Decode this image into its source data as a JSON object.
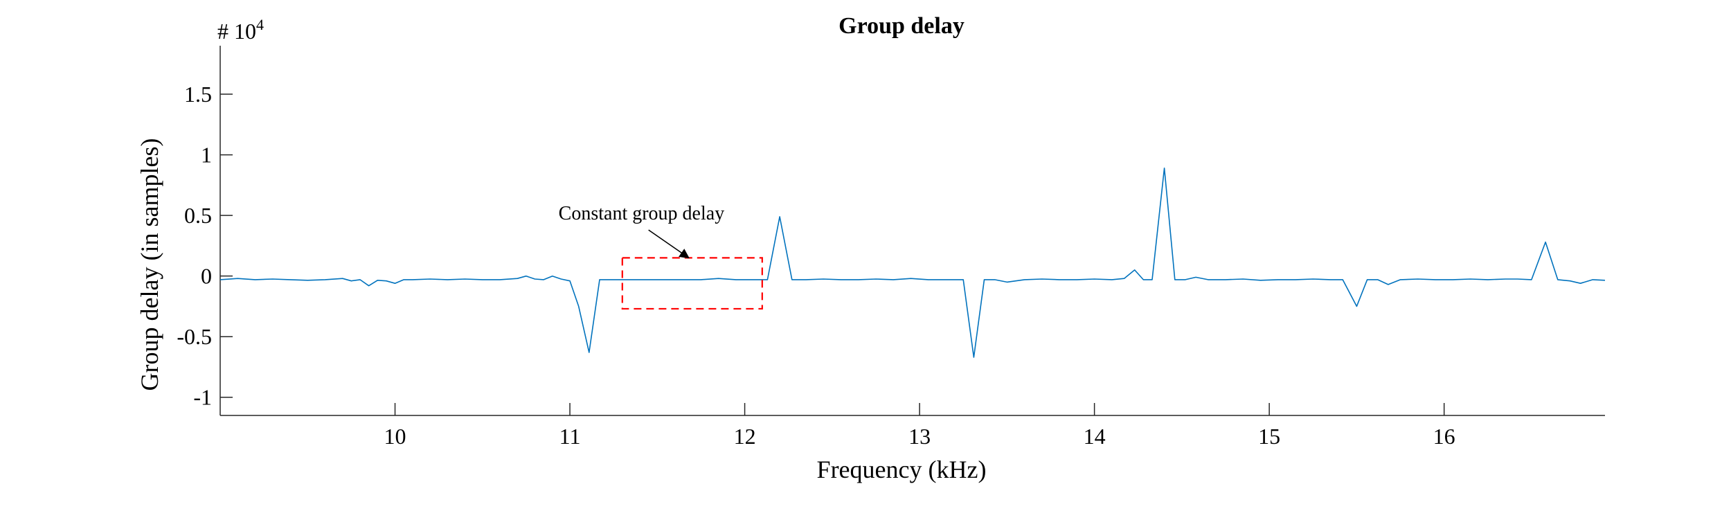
{
  "chart_data": {
    "type": "line",
    "title": "Group delay",
    "xlabel": "Frequency (kHz)",
    "ylabel": "Group delay (in samples)",
    "y_exponent_base": "# 10",
    "y_exponent_power": "4",
    "xlim": [
      9.0,
      16.92
    ],
    "ylim": [
      -1.15,
      1.9
    ],
    "x_ticks": [
      10,
      11,
      12,
      13,
      14,
      15,
      16
    ],
    "x_tick_labels": [
      "10",
      "11",
      "12",
      "13",
      "14",
      "15",
      "16"
    ],
    "y_ticks": [
      -1,
      -0.5,
      0,
      0.5,
      1,
      1.5
    ],
    "y_tick_labels": [
      "-1",
      "-0.5",
      "0",
      "0.5",
      "1",
      "1.5"
    ],
    "grid": false,
    "series": [
      {
        "color": "#0072BD",
        "x": [
          9.0,
          9.1,
          9.2,
          9.3,
          9.4,
          9.5,
          9.6,
          9.7,
          9.75,
          9.8,
          9.85,
          9.9,
          9.95,
          10.0,
          10.05,
          10.1,
          10.2,
          10.3,
          10.4,
          10.5,
          10.6,
          10.7,
          10.75,
          10.8,
          10.85,
          10.9,
          10.95,
          11.0,
          11.05,
          11.11,
          11.17,
          11.25,
          11.35,
          11.45,
          11.55,
          11.65,
          11.75,
          11.85,
          11.95,
          12.05,
          12.13,
          12.2,
          12.27,
          12.35,
          12.45,
          12.55,
          12.65,
          12.75,
          12.85,
          12.95,
          13.05,
          13.15,
          13.25,
          13.31,
          13.37,
          13.43,
          13.5,
          13.6,
          13.7,
          13.8,
          13.9,
          14.0,
          14.1,
          14.17,
          14.23,
          14.28,
          14.33,
          14.4,
          14.46,
          14.52,
          14.58,
          14.65,
          14.75,
          14.85,
          14.95,
          15.05,
          15.15,
          15.25,
          15.35,
          15.42,
          15.5,
          15.56,
          15.62,
          15.68,
          15.75,
          15.85,
          15.95,
          16.05,
          16.15,
          16.25,
          16.35,
          16.42,
          16.5,
          16.58,
          16.65,
          16.72,
          16.78,
          16.85,
          16.92
        ],
        "y": [
          -0.03,
          -0.02,
          -0.03,
          -0.025,
          -0.03,
          -0.035,
          -0.03,
          -0.02,
          -0.04,
          -0.03,
          -0.08,
          -0.035,
          -0.04,
          -0.06,
          -0.03,
          -0.03,
          -0.025,
          -0.03,
          -0.025,
          -0.03,
          -0.03,
          -0.02,
          0.0,
          -0.025,
          -0.03,
          0.0,
          -0.025,
          -0.04,
          -0.25,
          -0.63,
          -0.03,
          -0.03,
          -0.03,
          -0.03,
          -0.03,
          -0.03,
          -0.03,
          -0.02,
          -0.03,
          -0.03,
          -0.03,
          0.49,
          -0.03,
          -0.03,
          -0.025,
          -0.03,
          -0.03,
          -0.025,
          -0.03,
          -0.02,
          -0.03,
          -0.03,
          -0.03,
          -0.67,
          -0.03,
          -0.03,
          -0.05,
          -0.03,
          -0.025,
          -0.03,
          -0.03,
          -0.025,
          -0.03,
          -0.02,
          0.05,
          -0.03,
          -0.03,
          0.89,
          -0.03,
          -0.03,
          -0.01,
          -0.03,
          -0.03,
          -0.025,
          -0.035,
          -0.03,
          -0.03,
          -0.025,
          -0.03,
          -0.03,
          -0.25,
          -0.03,
          -0.03,
          -0.07,
          -0.03,
          -0.025,
          -0.03,
          -0.03,
          -0.025,
          -0.03,
          -0.025,
          -0.025,
          -0.03,
          0.28,
          -0.03,
          -0.04,
          -0.06,
          -0.03,
          -0.035
        ]
      }
    ],
    "annotations": [
      {
        "text": "Constant group delay",
        "box_x": [
          11.3,
          12.1
        ],
        "box_y": [
          -0.27,
          0.15
        ],
        "box_color": "#FF0000",
        "arrow_from": [
          11.45,
          0.38
        ],
        "arrow_to": [
          11.68,
          0.15
        ]
      }
    ]
  }
}
